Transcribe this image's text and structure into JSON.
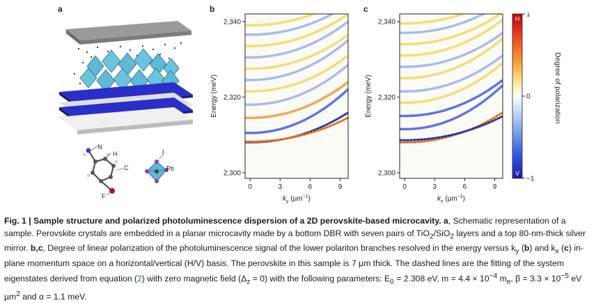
{
  "figure": {
    "panel_labels": {
      "a": "a",
      "b": "b",
      "c": "c"
    },
    "schematic": {
      "atom_labels": {
        "N": "N",
        "H": "H",
        "C": "C",
        "F": "F",
        "I": "I",
        "Pb": "Pb"
      }
    },
    "colors": {
      "cavity_blue": "#2b2ec7",
      "mirror_gray": "#8a8a8a",
      "crystal_cyan": "#5fb8d6",
      "cmap_low": "#2c47d9",
      "cmap_high": "#e31a1c"
    }
  },
  "chart_data": [
    {
      "type": "heatmap",
      "panel": "b",
      "ylabel": "Energy (meV)",
      "xlabel_main": "k",
      "xlabel_sub": "y",
      "xlabel_unit": "(µm",
      "xlabel_exp": "−1",
      "xlabel_close": ")",
      "xlim": [
        -0.5,
        9.8
      ],
      "ylim": [
        2298.5,
        2342
      ],
      "xticks": [
        "0",
        "3",
        "6",
        "9"
      ],
      "yticks": [
        "2,300",
        "2,320",
        "2,340"
      ],
      "ytick_values": [
        2300,
        2320,
        2340
      ],
      "xtick_values": [
        0,
        3,
        6,
        9
      ],
      "bands": [
        {
          "E0": 2308,
          "curv": 0.075,
          "pol": "V",
          "fitted": true
        },
        {
          "E0": 2308.2,
          "curv": 0.06,
          "pol": "H",
          "fitted": true
        },
        {
          "E0": 2310.5,
          "curv": 0.11,
          "pol": "V"
        },
        {
          "E0": 2314.5,
          "curv": 0.09,
          "pol": "H"
        },
        {
          "E0": 2318,
          "curv": 0.1,
          "pol": "V"
        },
        {
          "E0": 2321.5,
          "curv": 0.09,
          "pol": "H"
        },
        {
          "E0": 2324.5,
          "curv": 0.1,
          "pol": "V"
        },
        {
          "E0": 2327.5,
          "curv": 0.085,
          "pol": "H"
        },
        {
          "E0": 2330.5,
          "curv": 0.09,
          "pol": "V"
        },
        {
          "E0": 2333.5,
          "curv": 0.08,
          "pol": "H"
        },
        {
          "E0": 2336.5,
          "curv": 0.075,
          "pol": "V"
        },
        {
          "E0": 2339,
          "curv": 0.07,
          "pol": "H"
        }
      ]
    },
    {
      "type": "heatmap",
      "panel": "c",
      "ylabel": "Energy (meV)",
      "xlabel_main": "k",
      "xlabel_sub": "x",
      "xlabel_unit": "(µm",
      "xlabel_exp": "−1",
      "xlabel_close": ")",
      "xlim": [
        -0.5,
        9.8
      ],
      "ylim": [
        2298.5,
        2342
      ],
      "xticks": [
        "0",
        "3",
        "6",
        "9"
      ],
      "yticks": [
        "2,300",
        "2,320",
        "2,340"
      ],
      "ytick_values": [
        2300,
        2320,
        2340
      ],
      "xtick_values": [
        0,
        3,
        6,
        9
      ],
      "bands": [
        {
          "E0": 2308,
          "curv": 0.075,
          "pol": "H",
          "fitted": true
        },
        {
          "E0": 2308.6,
          "curv": 0.06,
          "pol": "V",
          "fitted": true
        },
        {
          "E0": 2311.5,
          "curv": 0.11,
          "pol": "V"
        },
        {
          "E0": 2315,
          "curv": 0.09,
          "pol": "V"
        },
        {
          "E0": 2318.5,
          "curv": 0.1,
          "pol": "H"
        },
        {
          "E0": 2321.5,
          "curv": 0.09,
          "pol": "V"
        },
        {
          "E0": 2325,
          "curv": 0.1,
          "pol": "H"
        },
        {
          "E0": 2328,
          "curv": 0.085,
          "pol": "V"
        },
        {
          "E0": 2331,
          "curv": 0.09,
          "pol": "H"
        },
        {
          "E0": 2334,
          "curv": 0.08,
          "pol": "H"
        },
        {
          "E0": 2337,
          "curv": 0.075,
          "pol": "V"
        },
        {
          "E0": 2339.5,
          "curv": 0.07,
          "pol": "H"
        }
      ]
    },
    {
      "type": "colorbar",
      "label": "Degree of polarization",
      "top_letter": "H",
      "bottom_letter": "V",
      "ticks": [
        "1",
        "0",
        "−1"
      ],
      "range": [
        -1,
        1
      ]
    }
  ],
  "caption": {
    "fig_label": "Fig. 1 | Sample structure and polarized photoluminescence dispersion of a 2D perovskite-based microcavity.",
    "part_a_label": "a",
    "part_a_text": ", Schematic representation of a sample. Perovskite crystals are embedded in a planar microcavity made by a bottom DBR with seven pairs of TiO",
    "sub2a": "2",
    "slash": "/SiO",
    "sub2b": "2",
    "part_a_text2": " layers and a top 80-nm-thick silver mirror. ",
    "part_bc_label": "b,c",
    "part_bc_text": ", Degree of linear polarization of the photoluminescence signal of the lower polariton branches resolved in the energy versus k",
    "sub_y": "y",
    "paren_b_open": " (",
    "b_bold": "b",
    "paren_b_close": ") and k",
    "sub_x": "x",
    "paren_c_open": " (",
    "c_bold": "c",
    "paren_c_close": ")",
    "part_rest": " in-plane momentum space on a horizontal/vertical (H/V) basis. The perovskite in this sample is 7 µm thick. The dashed lines are the fitting of the system eigenstates derived from equation (",
    "eq_ref": "2",
    "part_rest2": ") with zero magnetic field (Δ",
    "delta_sub": "z",
    "part_rest3": " = 0) with the following parameters: E",
    "e0_sub": "0",
    "part_rest4": " = 2.308 eV, m = 4.4 × 10",
    "m_exp": "−4",
    "m_text": " m",
    "m_sub": "e",
    "beta_text": ", β = 3.3 × 10",
    "beta_exp": "−5",
    "beta_unit": " eV µm",
    "um_exp": "2",
    "alpha_text": " and α = 1.1 meV."
  }
}
